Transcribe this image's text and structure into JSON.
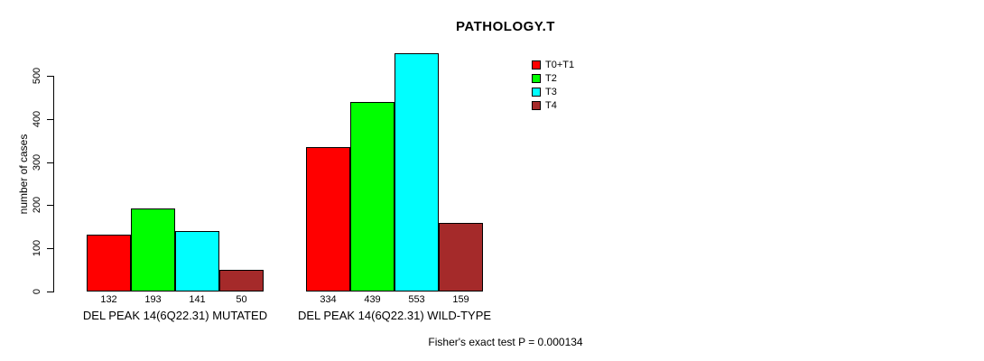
{
  "chart_data": {
    "type": "bar",
    "title": "PATHOLOGY.T",
    "xlabel": "",
    "ylabel": "number of cases",
    "y_ticks": [
      0,
      100,
      200,
      300,
      400,
      500
    ],
    "ylim": [
      0,
      560
    ],
    "grid": false,
    "legend_position": "top-right",
    "series": [
      "T0+T1",
      "T2",
      "T3",
      "T4"
    ],
    "series_colors": [
      "#ff0000",
      "#00ff00",
      "#00ffff",
      "#a52a2a"
    ],
    "categories": [
      "DEL PEAK 14(6Q22.31) MUTATED",
      "DEL PEAK 14(6Q22.31) WILD-TYPE"
    ],
    "groups": [
      {
        "label": "DEL PEAK 14(6Q22.31) MUTATED",
        "values": [
          132,
          193,
          141,
          50
        ]
      },
      {
        "label": "DEL PEAK 14(6Q22.31) WILD-TYPE",
        "values": [
          334,
          439,
          553,
          159
        ]
      }
    ],
    "annotation": "Fisher's exact test P = 0.000134"
  }
}
